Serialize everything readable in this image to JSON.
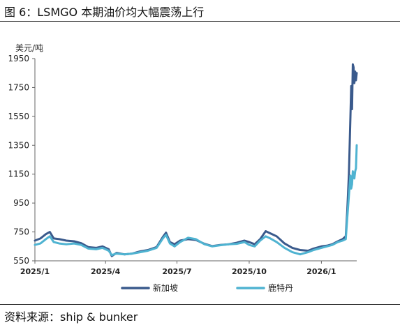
{
  "figure": {
    "title": "图 6：LSMGO 本期油价均大幅震荡上行",
    "source": "资料来源：ship & bunker"
  },
  "chart_data": {
    "type": "line",
    "ylabel": "美元/吨",
    "ylim": [
      550,
      1950
    ],
    "yticks": [
      "550",
      "750",
      "950",
      "1150",
      "1350",
      "1550",
      "1750",
      "1950"
    ],
    "xlim": [
      "2025-01-01",
      "2026-02-15"
    ],
    "xticks": [
      {
        "date": "2025-01-01",
        "label": "2025/1"
      },
      {
        "date": "2025-04-01",
        "label": "2025/4"
      },
      {
        "date": "2025-07-01",
        "label": "2025/7"
      },
      {
        "date": "2025-10-01",
        "label": "2025/10"
      },
      {
        "date": "2026-01-01",
        "label": "2026/1"
      }
    ],
    "grid": false,
    "legend": "bottom",
    "series": [
      {
        "name": "新加坡",
        "color": "#3a5a8c",
        "points": [
          [
            "2025-01-01",
            690
          ],
          [
            "2025-01-08",
            705
          ],
          [
            "2025-01-15",
            735
          ],
          [
            "2025-01-20",
            750
          ],
          [
            "2025-01-25",
            705
          ],
          [
            "2025-02-01",
            700
          ],
          [
            "2025-02-10",
            690
          ],
          [
            "2025-02-20",
            685
          ],
          [
            "2025-03-01",
            672
          ],
          [
            "2025-03-10",
            645
          ],
          [
            "2025-03-20",
            640
          ],
          [
            "2025-03-28",
            650
          ],
          [
            "2025-04-05",
            630
          ],
          [
            "2025-04-09",
            583
          ],
          [
            "2025-04-15",
            605
          ],
          [
            "2025-04-25",
            595
          ],
          [
            "2025-05-05",
            600
          ],
          [
            "2025-05-15",
            615
          ],
          [
            "2025-05-25",
            625
          ],
          [
            "2025-06-05",
            645
          ],
          [
            "2025-06-13",
            715
          ],
          [
            "2025-06-17",
            745
          ],
          [
            "2025-06-22",
            680
          ],
          [
            "2025-06-28",
            665
          ],
          [
            "2025-07-05",
            690
          ],
          [
            "2025-07-15",
            700
          ],
          [
            "2025-07-25",
            695
          ],
          [
            "2025-08-05",
            668
          ],
          [
            "2025-08-15",
            652
          ],
          [
            "2025-08-25",
            660
          ],
          [
            "2025-09-05",
            665
          ],
          [
            "2025-09-15",
            675
          ],
          [
            "2025-09-25",
            690
          ],
          [
            "2025-10-01",
            680
          ],
          [
            "2025-10-08",
            665
          ],
          [
            "2025-10-15",
            700
          ],
          [
            "2025-10-22",
            755
          ],
          [
            "2025-10-28",
            740
          ],
          [
            "2025-11-05",
            720
          ],
          [
            "2025-11-15",
            670
          ],
          [
            "2025-11-25",
            640
          ],
          [
            "2025-12-05",
            625
          ],
          [
            "2025-12-15",
            620
          ],
          [
            "2025-12-22",
            635
          ],
          [
            "2026-01-01",
            650
          ],
          [
            "2026-01-08",
            655
          ],
          [
            "2026-01-15",
            665
          ],
          [
            "2026-01-22",
            685
          ],
          [
            "2026-01-28",
            700
          ],
          [
            "2026-02-01",
            720
          ],
          [
            "2026-02-03",
            900
          ],
          [
            "2026-02-05",
            1150
          ],
          [
            "2026-02-07",
            1550
          ],
          [
            "2026-02-08",
            1760
          ],
          [
            "2026-02-09",
            1600
          ],
          [
            "2026-02-10",
            1910
          ],
          [
            "2026-02-11",
            1890
          ],
          [
            "2026-02-12",
            1780
          ],
          [
            "2026-02-13",
            1860
          ],
          [
            "2026-02-14",
            1800
          ],
          [
            "2026-02-15",
            1850
          ]
        ]
      },
      {
        "name": "鹿特丹",
        "color": "#4fb3d1",
        "points": [
          [
            "2025-01-01",
            660
          ],
          [
            "2025-01-08",
            670
          ],
          [
            "2025-01-15",
            700
          ],
          [
            "2025-01-20",
            720
          ],
          [
            "2025-01-25",
            680
          ],
          [
            "2025-02-01",
            670
          ],
          [
            "2025-02-10",
            665
          ],
          [
            "2025-02-20",
            670
          ],
          [
            "2025-03-01",
            660
          ],
          [
            "2025-03-10",
            635
          ],
          [
            "2025-03-20",
            630
          ],
          [
            "2025-03-28",
            640
          ],
          [
            "2025-04-05",
            620
          ],
          [
            "2025-04-09",
            590
          ],
          [
            "2025-04-15",
            600
          ],
          [
            "2025-04-25",
            595
          ],
          [
            "2025-05-05",
            600
          ],
          [
            "2025-05-15",
            610
          ],
          [
            "2025-05-25",
            620
          ],
          [
            "2025-06-05",
            640
          ],
          [
            "2025-06-13",
            705
          ],
          [
            "2025-06-17",
            730
          ],
          [
            "2025-06-22",
            670
          ],
          [
            "2025-06-28",
            650
          ],
          [
            "2025-07-05",
            680
          ],
          [
            "2025-07-15",
            710
          ],
          [
            "2025-07-25",
            700
          ],
          [
            "2025-08-05",
            665
          ],
          [
            "2025-08-15",
            650
          ],
          [
            "2025-08-25",
            658
          ],
          [
            "2025-09-05",
            665
          ],
          [
            "2025-09-15",
            668
          ],
          [
            "2025-09-25",
            680
          ],
          [
            "2025-10-01",
            660
          ],
          [
            "2025-10-08",
            650
          ],
          [
            "2025-10-15",
            690
          ],
          [
            "2025-10-22",
            720
          ],
          [
            "2025-10-28",
            705
          ],
          [
            "2025-11-05",
            680
          ],
          [
            "2025-11-15",
            640
          ],
          [
            "2025-11-25",
            610
          ],
          [
            "2025-12-05",
            595
          ],
          [
            "2025-12-15",
            610
          ],
          [
            "2025-12-22",
            625
          ],
          [
            "2026-01-01",
            640
          ],
          [
            "2026-01-08",
            650
          ],
          [
            "2026-01-15",
            660
          ],
          [
            "2026-01-22",
            680
          ],
          [
            "2026-01-28",
            690
          ],
          [
            "2026-02-01",
            700
          ],
          [
            "2026-02-03",
            850
          ],
          [
            "2026-02-05",
            1000
          ],
          [
            "2026-02-07",
            1140
          ],
          [
            "2026-02-08",
            1050
          ],
          [
            "2026-02-09",
            1080
          ],
          [
            "2026-02-10",
            1170
          ],
          [
            "2026-02-11",
            1150
          ],
          [
            "2026-02-12",
            1120
          ],
          [
            "2026-02-13",
            1170
          ],
          [
            "2026-02-14",
            1190
          ],
          [
            "2026-02-15",
            1350
          ]
        ]
      }
    ]
  }
}
